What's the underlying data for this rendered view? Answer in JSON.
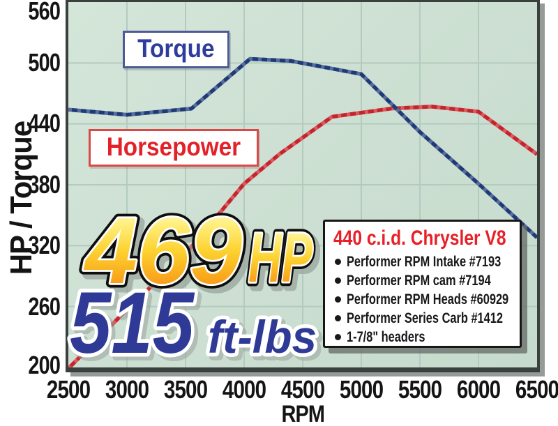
{
  "chart_data": {
    "type": "line",
    "title": "",
    "xlabel": "RPM",
    "ylabel": "HP / Torque",
    "xlim": [
      2500,
      6500
    ],
    "ylim": [
      200,
      560
    ],
    "x_ticks": [
      2500,
      3000,
      3500,
      4000,
      4500,
      5000,
      5500,
      6000,
      6500
    ],
    "y_ticks": [
      560,
      500,
      440,
      380,
      320,
      260,
      200
    ],
    "grid": true,
    "plot_bg": "#cde0d3",
    "grid_color": "#b3cbbf",
    "legend_position": "inline-labels",
    "series": [
      {
        "name": "Torque",
        "color": "#1f3a78",
        "units": "ft-lbs",
        "points": [
          [
            2500,
            454
          ],
          [
            3000,
            449
          ],
          [
            3550,
            455
          ],
          [
            4050,
            504
          ],
          [
            4400,
            502
          ],
          [
            5000,
            489
          ],
          [
            5500,
            432
          ],
          [
            6000,
            381
          ],
          [
            6500,
            328
          ]
        ]
      },
      {
        "name": "Horsepower",
        "color": "#c8232b",
        "units": "HP",
        "points": [
          [
            2500,
            199
          ],
          [
            3000,
            257
          ],
          [
            3500,
            312
          ],
          [
            4000,
            381
          ],
          [
            4300,
            410
          ],
          [
            4750,
            447
          ],
          [
            5250,
            455
          ],
          [
            5600,
            457
          ],
          [
            6000,
            452
          ],
          [
            6500,
            410
          ]
        ]
      }
    ]
  },
  "labels": {
    "torque": "Torque",
    "horsepower": "Horsepower"
  },
  "headline": {
    "hp_value": "469",
    "hp_unit": "HP",
    "tq_value": "515",
    "tq_unit": "ft-lbs"
  },
  "spec_box": {
    "title": "440 c.i.d. Chrysler V8",
    "items": [
      "Performer RPM Intake #7193",
      "Performer RPM cam #7194",
      "Performer RPM Heads #60929",
      "Performer Series Carb #1412",
      "1-7/8\" headers"
    ]
  }
}
